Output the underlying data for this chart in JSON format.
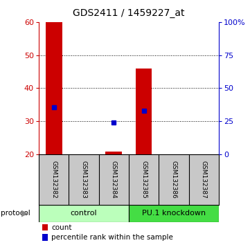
{
  "title": "GDS2411 / 1459227_at",
  "samples": [
    "GSM132382",
    "GSM132383",
    "GSM132384",
    "GSM132385",
    "GSM132386",
    "GSM132387"
  ],
  "bar_bottom": 20,
  "bar_tops": [
    60,
    20,
    20.8,
    46,
    20,
    20
  ],
  "percentile_ranks": [
    35.5,
    null,
    24.0,
    33.0,
    null,
    null
  ],
  "ylim": [
    20,
    60
  ],
  "yticks_left": [
    20,
    30,
    40,
    50,
    60
  ],
  "yticks_right": [
    0,
    25,
    50,
    75,
    100
  ],
  "bar_color": "#cc0000",
  "percentile_color": "#0000cc",
  "background_color": "#ffffff",
  "grid_lines": [
    30,
    40,
    50
  ],
  "protocol_groups": [
    {
      "label": "control",
      "start": 0,
      "end": 2,
      "color": "#bbffbb"
    },
    {
      "label": "PU.1 knockdown",
      "start": 3,
      "end": 5,
      "color": "#44dd44"
    }
  ],
  "sample_box_color": "#c8c8c8",
  "legend_count_color": "#cc0000",
  "legend_pct_color": "#0000cc",
  "bar_width": 0.55
}
